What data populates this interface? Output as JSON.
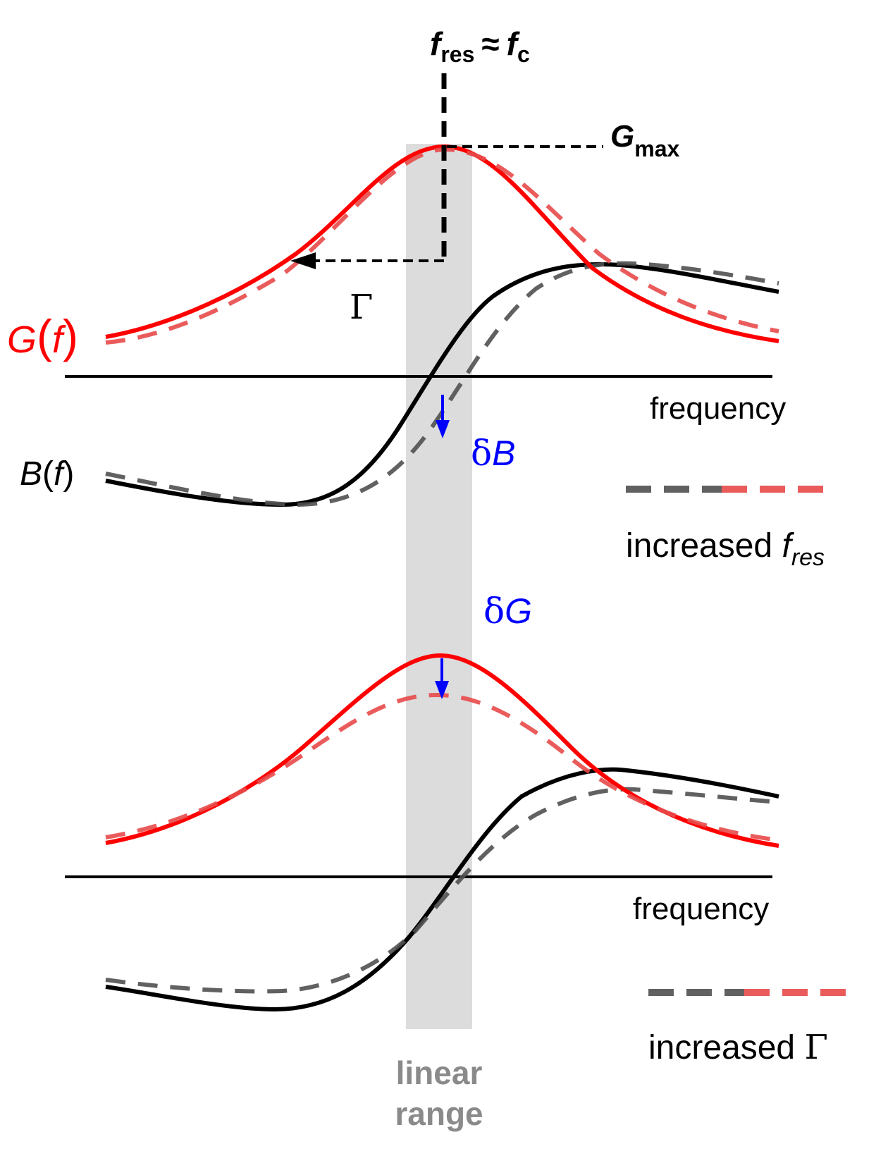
{
  "colors": {
    "conductance": "#ff0000",
    "conductance_dashed": "#e84a4a",
    "susceptance": "#000000",
    "susceptance_dashed": "#505050",
    "shift_arrow": "#0000ff",
    "linear_band": "#dcdcdc",
    "linear_text": "#8a8a8a"
  },
  "labels": {
    "fres": {
      "f": "f",
      "sub": "res",
      "approx": "≈",
      "fc": "f",
      "fc_sub": "c"
    },
    "gmax": {
      "g": "G",
      "sub": "max"
    },
    "gamma": "Γ",
    "g_of_f": {
      "g": "G",
      "open": "(",
      "f": "f",
      "close": ")"
    },
    "b_of_f": {
      "b": "B",
      "open": "(",
      "f": "f",
      "close": ")"
    },
    "frequency_top": "frequency",
    "frequency_bottom": "frequency",
    "delta_b": {
      "delta": "δ",
      "sym": "B"
    },
    "delta_g": {
      "delta": "δ",
      "sym": "G"
    },
    "legend_top": {
      "text": "increased ",
      "f": "f",
      "sub": "res"
    },
    "legend_bottom": {
      "text": "increased ",
      "sym": "Γ"
    },
    "linear_range": [
      "linear",
      "range"
    ]
  },
  "icons": {
    "shift_arrow": "down-arrow-icon",
    "gamma_arrow": "left-arrow-icon"
  }
}
